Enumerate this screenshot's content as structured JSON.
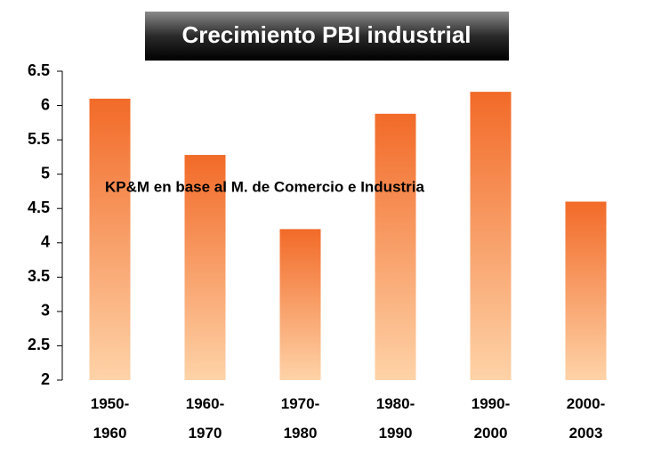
{
  "chart_data": {
    "type": "bar",
    "title": "Crecimiento PBI industrial",
    "annotation": "KP&M en base al M. de Comercio e Industria",
    "categories": [
      "1950-1960",
      "1960-1970",
      "1970-1980",
      "1980-1990",
      "1990-2000",
      "2000-2003"
    ],
    "values": [
      6.1,
      5.28,
      4.2,
      5.88,
      6.2,
      4.6
    ],
    "color": "#f47a3a",
    "ylim": [
      2,
      6.5
    ],
    "yticks": [
      2,
      2.5,
      3,
      3.5,
      4,
      4.5,
      5,
      5.5,
      6,
      6.5
    ],
    "grid": false
  }
}
